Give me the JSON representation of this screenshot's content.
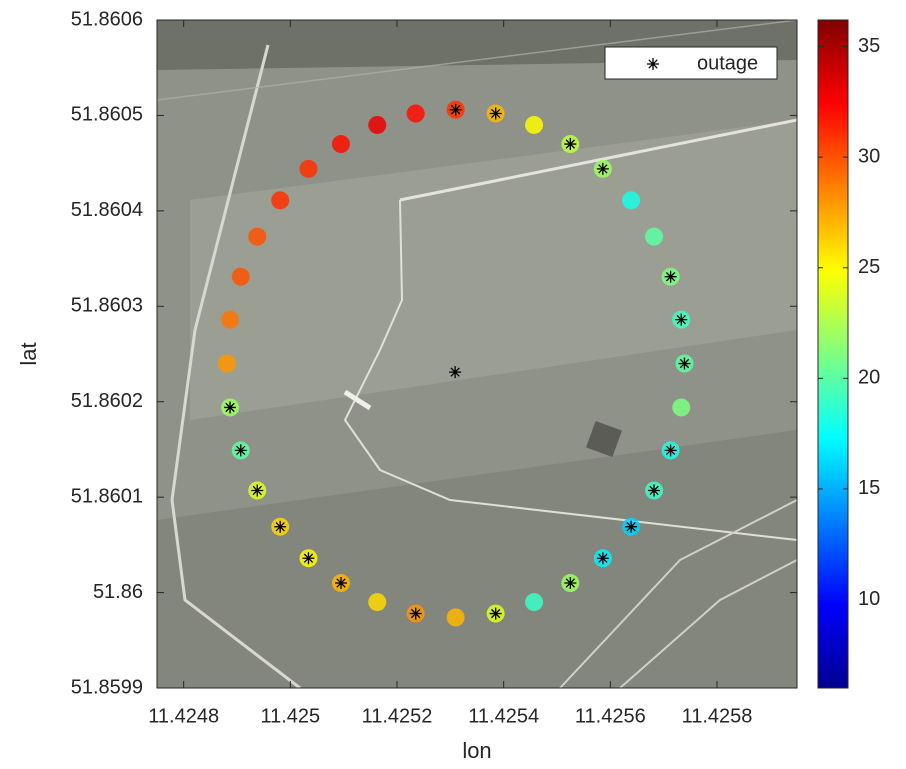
{
  "chart_data": {
    "type": "scatter",
    "xlabel": "lon",
    "ylabel": "lat",
    "xlim": [
      11.42475,
      11.42595
    ],
    "ylim": [
      51.8599,
      51.8606
    ],
    "xticks": [
      11.4248,
      11.425,
      11.4252,
      11.4254,
      11.4256,
      11.4258
    ],
    "yticks": [
      51.8599,
      51.86,
      51.8601,
      51.8602,
      51.8603,
      51.8604,
      51.8605,
      51.8606
    ],
    "colormap": "jet",
    "clim": [
      6,
      36.2
    ],
    "cticks": [
      10,
      15,
      20,
      25,
      30,
      35
    ],
    "legend": "upper right",
    "series": [
      {
        "x": [
          11.425739,
          11.425733,
          11.425713,
          11.425682,
          11.425639,
          11.425586,
          11.425525,
          11.425457,
          11.425385,
          11.42531,
          11.425235,
          11.425163,
          11.425095,
          11.425034,
          11.424981,
          11.424938,
          11.424907,
          11.424887,
          11.424881,
          11.424887,
          11.424907,
          11.424938,
          11.424981,
          11.425034,
          11.425095,
          11.425163,
          11.425235,
          11.42531,
          11.425385,
          11.425457,
          11.425525,
          11.425586,
          11.425639,
          11.425682,
          11.425713,
          11.425733
        ],
        "y": [
          51.86024,
          51.860286,
          51.860331,
          51.860373,
          51.860411,
          51.860444,
          51.86047,
          51.86049,
          51.860502,
          51.860506,
          51.860502,
          51.86049,
          51.86047,
          51.860444,
          51.860411,
          51.860373,
          51.860331,
          51.860286,
          51.86024,
          51.860194,
          51.860149,
          51.860107,
          51.860069,
          51.860036,
          51.86001,
          51.85999,
          51.859978,
          51.859974,
          51.859978,
          51.85999,
          51.86001,
          51.860036,
          51.860069,
          51.860107,
          51.860149,
          51.860194
        ],
        "values": [
          20,
          19,
          21,
          20,
          18,
          22,
          23,
          25,
          27,
          31,
          32,
          33,
          32,
          31,
          31,
          30,
          30,
          29,
          28,
          22,
          20,
          24,
          26,
          25,
          27,
          26,
          28,
          27,
          24,
          19,
          22,
          17,
          16,
          19,
          18,
          21
        ]
      },
      {
        "name": "outage",
        "color": "#000000",
        "x": [
          11.425739,
          11.425733,
          11.425713,
          11.425586,
          11.425525,
          11.425385,
          11.42531,
          11.424887,
          11.424907,
          11.424938,
          11.424981,
          11.425034,
          11.425095,
          11.425235,
          11.425385,
          11.425525,
          11.425586,
          11.425639,
          11.425682,
          11.425713,
          11.425309
        ],
        "y": [
          51.86024,
          51.860286,
          51.860331,
          51.860444,
          51.86047,
          51.860502,
          51.860506,
          51.860194,
          51.860149,
          51.860107,
          51.860069,
          51.860036,
          51.86001,
          51.859978,
          51.859978,
          51.86001,
          51.860036,
          51.860069,
          51.860107,
          51.860149,
          51.860231
        ]
      }
    ]
  }
}
